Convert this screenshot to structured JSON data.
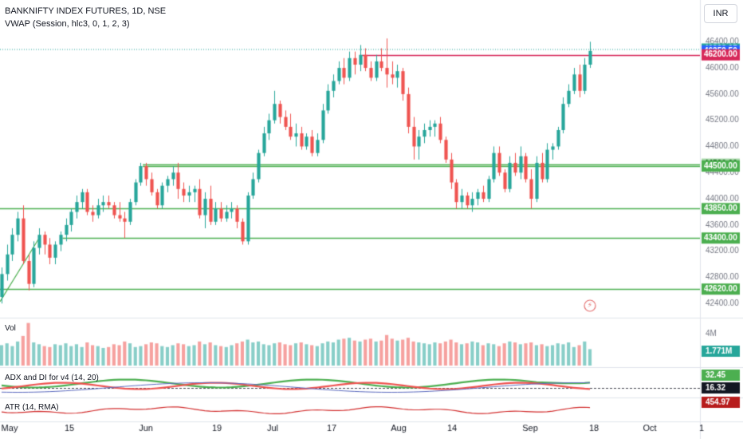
{
  "header": {
    "title": "BANKNIFTY INDEX FUTURES, 1D, NSE",
    "subtitle": "VWAP (Session, hlc3, 0, 1, 2, 3)"
  },
  "currency_button": "INR",
  "panes": {
    "volume": {
      "label": "Vol",
      "badge": "1.771M",
      "scale_label": "4M"
    },
    "adx": {
      "label": "ADX and DI for v4 (14, 20)",
      "badges": [
        "32.45",
        "16.32"
      ]
    },
    "atr": {
      "label": "ATR (14, RMA)",
      "badge": "454.97"
    }
  },
  "colors": {
    "up": "#26a69a",
    "down": "#ef5350",
    "level_line": "#4caf50",
    "resistance_line": "#d7285a",
    "vwap_line": "#4caf50"
  },
  "chart_data": {
    "type": "candlestick",
    "title": "BANKNIFTY INDEX FUTURES, 1D, NSE",
    "x_tick_labels": [
      "May",
      "15",
      "Jun",
      "19",
      "Jul",
      "17",
      "Aug",
      "14",
      "Sep",
      "18",
      "Oct",
      "1"
    ],
    "y_ticks": [
      46400,
      46000,
      45600,
      45200,
      44800,
      44400,
      44000,
      43600,
      43200,
      42800,
      42400
    ],
    "ylim": [
      42220,
      46550
    ],
    "price_labels": [
      {
        "value": 46288.05,
        "label": "46288.05",
        "color": "#26a69a"
      },
      {
        "value": 46259.5,
        "label": "46259.50",
        "color": "#2962ff"
      },
      {
        "value": 46200.0,
        "label": "46200.00",
        "color": "#d7285a"
      },
      {
        "value": 44530.0,
        "label": "44530.00",
        "color": "#a5d6a7"
      },
      {
        "value": 44500.0,
        "label": "44500.00",
        "color": "#4caf50"
      },
      {
        "value": 43850.0,
        "label": "43850.00",
        "color": "#4caf50"
      },
      {
        "value": 43400.0,
        "label": "43400.00",
        "color": "#4caf50"
      },
      {
        "value": 42620.0,
        "label": "42620.00",
        "color": "#4caf50"
      }
    ],
    "horizontal_levels": [
      {
        "value": 46200,
        "from_bar": 68,
        "kind": "resistance"
      },
      {
        "value": 44530,
        "from_bar": 27,
        "kind": "support"
      },
      {
        "value": 44500,
        "from_bar": 27,
        "kind": "support"
      },
      {
        "value": 43850,
        "from_bar": 0,
        "kind": "support"
      },
      {
        "value": 43400,
        "from_bar": 12,
        "kind": "support"
      },
      {
        "value": 42620,
        "from_bar": 0,
        "kind": "support"
      }
    ],
    "ohlc": [
      [
        42500,
        42950,
        42400,
        42850
      ],
      [
        42850,
        43300,
        42750,
        43150
      ],
      [
        43150,
        43550,
        43050,
        43450
      ],
      [
        43450,
        43800,
        43350,
        43700
      ],
      [
        43700,
        43900,
        43000,
        43050
      ],
      [
        43050,
        43150,
        42600,
        42700
      ],
      [
        42700,
        43350,
        42650,
        43250
      ],
      [
        43250,
        43550,
        43150,
        43450
      ],
      [
        43450,
        43500,
        43150,
        43300
      ],
      [
        43300,
        43400,
        43000,
        43100
      ],
      [
        43100,
        43350,
        43000,
        43300
      ],
      [
        43300,
        43500,
        43200,
        43450
      ],
      [
        43450,
        43700,
        43350,
        43600
      ],
      [
        43600,
        43850,
        43500,
        43800
      ],
      [
        43800,
        44050,
        43700,
        43950
      ],
      [
        43950,
        44150,
        43850,
        44100
      ],
      [
        44100,
        44150,
        43750,
        43800
      ],
      [
        43800,
        43900,
        43650,
        43750
      ],
      [
        43750,
        44000,
        43700,
        43900
      ],
      [
        43900,
        44050,
        43800,
        43950
      ],
      [
        43950,
        44050,
        43850,
        43900
      ],
      [
        43900,
        43950,
        43700,
        43750
      ],
      [
        43750,
        43950,
        43650,
        43700
      ],
      [
        43700,
        43800,
        43400,
        43650
      ],
      [
        43650,
        44000,
        43600,
        43950
      ],
      [
        43950,
        44300,
        43900,
        44250
      ],
      [
        44250,
        44550,
        44200,
        44500
      ],
      [
        44500,
        44550,
        44200,
        44300
      ],
      [
        44300,
        44400,
        44050,
        44100
      ],
      [
        44100,
        44150,
        43850,
        43900
      ],
      [
        43900,
        44250,
        43850,
        44200
      ],
      [
        44200,
        44350,
        44100,
        44300
      ],
      [
        44300,
        44500,
        44200,
        44400
      ],
      [
        44400,
        44550,
        44000,
        44150
      ],
      [
        44150,
        44250,
        43950,
        44050
      ],
      [
        44050,
        44200,
        43950,
        44100
      ],
      [
        44100,
        44200,
        43950,
        44150
      ],
      [
        44150,
        44300,
        43700,
        43750
      ],
      [
        43750,
        44100,
        43550,
        44000
      ],
      [
        44000,
        44200,
        43600,
        43650
      ],
      [
        43650,
        43950,
        43600,
        43850
      ],
      [
        43850,
        43950,
        43650,
        43700
      ],
      [
        43700,
        43900,
        43650,
        43800
      ],
      [
        43800,
        43950,
        43700,
        43850
      ],
      [
        43850,
        43900,
        43550,
        43650
      ],
      [
        43650,
        43700,
        43300,
        43350
      ],
      [
        43350,
        44100,
        43300,
        44050
      ],
      [
        44050,
        44400,
        44000,
        44300
      ],
      [
        44300,
        44750,
        44250,
        44700
      ],
      [
        44700,
        45100,
        44650,
        45000
      ],
      [
        45000,
        45300,
        44900,
        45200
      ],
      [
        45200,
        45650,
        45150,
        45450
      ],
      [
        45450,
        45500,
        45150,
        45250
      ],
      [
        45250,
        45350,
        45050,
        45100
      ],
      [
        45100,
        45300,
        44900,
        44950
      ],
      [
        44950,
        45150,
        44800,
        45000
      ],
      [
        45000,
        45100,
        44750,
        44800
      ],
      [
        44800,
        45000,
        44750,
        44950
      ],
      [
        44950,
        45050,
        44650,
        44700
      ],
      [
        44700,
        45000,
        44650,
        44900
      ],
      [
        44900,
        45450,
        44850,
        45350
      ],
      [
        45350,
        45750,
        45300,
        45650
      ],
      [
        45650,
        45900,
        45550,
        45800
      ],
      [
        45800,
        46100,
        45750,
        46000
      ],
      [
        46000,
        46150,
        45750,
        45850
      ],
      [
        45850,
        46250,
        45800,
        46150
      ],
      [
        46150,
        46250,
        45900,
        46050
      ],
      [
        46050,
        46350,
        45950,
        46200
      ],
      [
        46200,
        46300,
        45950,
        46000
      ],
      [
        46000,
        46100,
        45800,
        45850
      ],
      [
        45850,
        46200,
        45800,
        46100
      ],
      [
        46100,
        46300,
        45950,
        46000
      ],
      [
        46000,
        46450,
        45700,
        45900
      ],
      [
        45900,
        46100,
        45750,
        45850
      ],
      [
        45850,
        46050,
        45700,
        45950
      ],
      [
        45950,
        46000,
        45500,
        45600
      ],
      [
        45600,
        45700,
        45000,
        45100
      ],
      [
        45100,
        45250,
        44600,
        44800
      ],
      [
        44800,
        45050,
        44600,
        44950
      ],
      [
        44950,
        45150,
        44850,
        45050
      ],
      [
        45050,
        45200,
        44950,
        45100
      ],
      [
        45100,
        45200,
        44950,
        45150
      ],
      [
        45150,
        45250,
        44850,
        44900
      ],
      [
        44900,
        44950,
        44550,
        44600
      ],
      [
        44600,
        44700,
        44150,
        44250
      ],
      [
        44250,
        44300,
        43850,
        43950
      ],
      [
        43950,
        44150,
        43850,
        44050
      ],
      [
        44050,
        44100,
        43850,
        43900
      ],
      [
        43900,
        44100,
        43800,
        44000
      ],
      [
        44000,
        44150,
        43900,
        44100
      ],
      [
        44100,
        44200,
        43950,
        44000
      ],
      [
        44000,
        44350,
        43950,
        44300
      ],
      [
        44300,
        44800,
        44250,
        44700
      ],
      [
        44700,
        44800,
        44350,
        44400
      ],
      [
        44400,
        44450,
        44100,
        44150
      ],
      [
        44150,
        44650,
        44100,
        44550
      ],
      [
        44550,
        44700,
        44350,
        44400
      ],
      [
        44400,
        44800,
        44300,
        44650
      ],
      [
        44650,
        44700,
        44250,
        44300
      ],
      [
        44300,
        44450,
        43850,
        44000
      ],
      [
        44000,
        44650,
        43950,
        44550
      ],
      [
        44550,
        44700,
        44250,
        44300
      ],
      [
        44300,
        44850,
        44250,
        44750
      ],
      [
        44750,
        44850,
        44600,
        44800
      ],
      [
        44800,
        45100,
        44750,
        45050
      ],
      [
        45050,
        45550,
        45000,
        45450
      ],
      [
        45450,
        45750,
        45400,
        45650
      ],
      [
        45650,
        46000,
        45600,
        45900
      ],
      [
        45900,
        46050,
        45550,
        45650
      ],
      [
        45650,
        46150,
        45600,
        46050
      ],
      [
        46050,
        46400,
        46000,
        46259.5
      ]
    ],
    "volume": [
      2.2,
      2.4,
      2.1,
      2.6,
      3.2,
      4.6,
      2.5,
      2.3,
      2.1,
      2.0,
      2.3,
      2.2,
      2.4,
      2.1,
      2.3,
      2.0,
      2.5,
      2.2,
      2.1,
      1.9,
      2.0,
      2.3,
      2.2,
      2.6,
      2.4,
      2.0,
      2.1,
      2.3,
      2.5,
      2.4,
      2.1,
      2.0,
      2.2,
      2.4,
      2.3,
      2.1,
      2.2,
      2.6,
      2.3,
      2.5,
      2.2,
      2.1,
      2.0,
      2.2,
      2.4,
      2.6,
      2.8,
      2.5,
      2.6,
      2.3,
      2.2,
      2.4,
      2.5,
      2.3,
      2.2,
      2.4,
      2.5,
      2.3,
      2.2,
      2.1,
      2.4,
      2.6,
      2.5,
      2.8,
      2.9,
      3.0,
      2.7,
      2.6,
      2.8,
      2.9,
      2.6,
      2.7,
      3.3,
      2.9,
      2.7,
      2.8,
      3.0,
      2.6,
      2.5,
      2.4,
      2.3,
      2.5,
      2.4,
      2.6,
      2.8,
      2.5,
      2.3,
      2.4,
      2.6,
      2.5,
      2.2,
      2.4,
      2.3,
      2.1,
      2.4,
      2.6,
      2.5,
      2.3,
      2.4,
      2.5,
      2.2,
      2.3,
      2.1,
      2.2,
      2.4,
      2.3,
      2.5,
      2.0,
      2.2,
      2.6,
      1.771
    ]
  }
}
